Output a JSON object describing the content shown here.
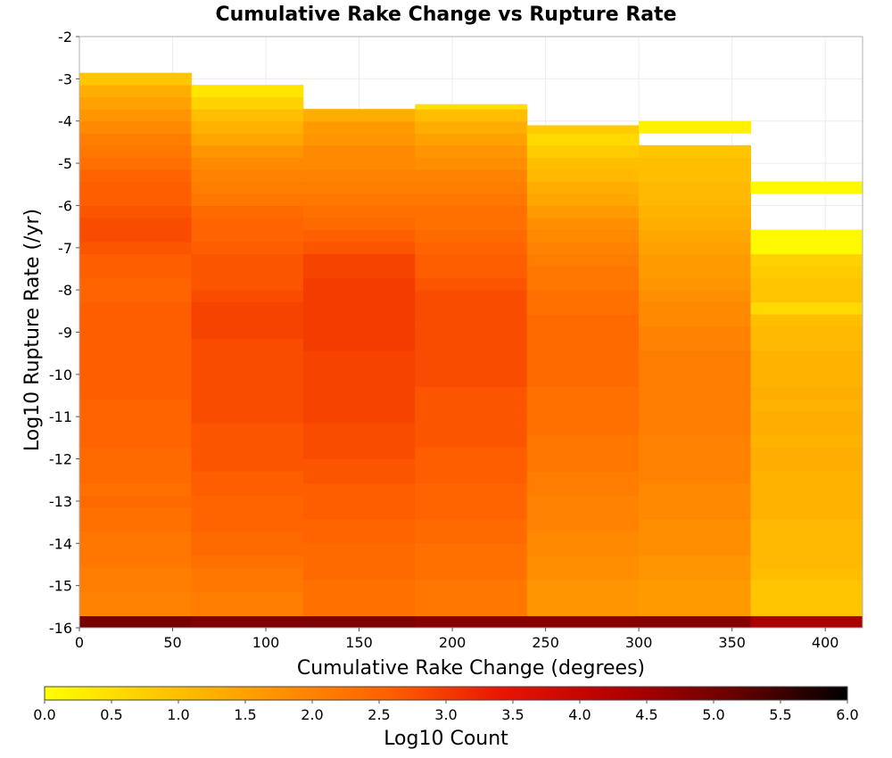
{
  "chart_data": {
    "type": "heatmap",
    "title": "Cumulative Rake Change vs Rupture Rate",
    "xlabel": "Cumulative Rake Change (degrees)",
    "ylabel": "Log10 Rupture Rate (/yr)",
    "xlim": [
      0,
      420
    ],
    "ylim": [
      -16,
      -2
    ],
    "xticks": [
      "0",
      "50",
      "100",
      "150",
      "200",
      "250",
      "300",
      "350",
      "400"
    ],
    "yticks": [
      "-2",
      "-3",
      "-4",
      "-5",
      "-6",
      "-7",
      "-8",
      "-9",
      "-10",
      "-11",
      "-12",
      "-13",
      "-14",
      "-15",
      "-16"
    ],
    "x_bin_width": 60,
    "y_bin_height": 0.2857,
    "grid": true,
    "colorbar": {
      "label": "Log10 Count",
      "range": [
        0.0,
        6.0
      ],
      "ticks": [
        "0.0",
        "0.5",
        "1.0",
        "1.5",
        "2.0",
        "2.5",
        "3.0",
        "3.5",
        "4.0",
        "4.5",
        "5.0",
        "5.5",
        "6.0"
      ],
      "colormap": [
        "#ffff00",
        "#ffc800",
        "#ff9400",
        "#ff6000",
        "#e81500",
        "#b30000",
        "#6a0000",
        "#000000"
      ]
    },
    "columns": [
      {
        "x_start": 0,
        "x_end": 60,
        "y_bottom": -16,
        "y_top": -2.7,
        "values": [
          5.0,
          2.0,
          2.0,
          2.1,
          2.1,
          2.2,
          2.2,
          2.2,
          2.3,
          2.3,
          2.4,
          2.3,
          2.4,
          2.4,
          2.4,
          2.5,
          2.5,
          2.5,
          2.5,
          2.6,
          2.6,
          2.6,
          2.6,
          2.6,
          2.6,
          2.6,
          2.6,
          2.5,
          2.5,
          2.6,
          2.6,
          2.7,
          2.8,
          2.8,
          2.7,
          2.6,
          2.6,
          2.5,
          2.3,
          2.2,
          2.1,
          1.9,
          1.7,
          1.5,
          1.3,
          0.9
        ]
      },
      {
        "x_start": 60,
        "x_end": 120,
        "y_bottom": -16,
        "y_top": -3.0,
        "values": [
          4.9,
          2.1,
          2.1,
          2.2,
          2.2,
          2.3,
          2.4,
          2.4,
          2.5,
          2.5,
          2.5,
          2.6,
          2.6,
          2.7,
          2.7,
          2.7,
          2.7,
          2.8,
          2.8,
          2.8,
          2.8,
          2.8,
          2.8,
          2.8,
          2.9,
          2.9,
          2.9,
          2.8,
          2.7,
          2.7,
          2.7,
          2.6,
          2.5,
          2.5,
          2.4,
          2.2,
          2.1,
          2.0,
          1.9,
          1.7,
          1.4,
          1.2,
          1.0,
          0.7,
          0.4
        ]
      },
      {
        "x_start": 120,
        "x_end": 180,
        "y_bottom": -16,
        "y_top": -3.6,
        "values": [
          4.9,
          2.3,
          2.3,
          2.3,
          2.4,
          2.4,
          2.4,
          2.5,
          2.5,
          2.6,
          2.6,
          2.6,
          2.7,
          2.7,
          2.8,
          2.8,
          2.8,
          2.9,
          2.9,
          2.9,
          2.9,
          2.9,
          2.9,
          3.0,
          3.0,
          3.0,
          3.0,
          3.0,
          3.0,
          2.9,
          2.9,
          2.7,
          2.6,
          2.4,
          2.3,
          2.2,
          2.1,
          2.0,
          1.9,
          1.9,
          1.7,
          1.6,
          1.3
        ]
      },
      {
        "x_start": 180,
        "x_end": 240,
        "y_bottom": -16,
        "y_top": -3.6,
        "values": [
          4.8,
          2.2,
          2.2,
          2.2,
          2.3,
          2.3,
          2.3,
          2.4,
          2.4,
          2.5,
          2.5,
          2.5,
          2.6,
          2.6,
          2.6,
          2.7,
          2.7,
          2.7,
          2.7,
          2.7,
          2.8,
          2.8,
          2.8,
          2.8,
          2.8,
          2.8,
          2.8,
          2.8,
          2.7,
          2.6,
          2.6,
          2.5,
          2.4,
          2.3,
          2.3,
          2.2,
          2.1,
          2.0,
          1.8,
          1.7,
          1.5,
          1.3,
          1.0,
          0.5
        ]
      },
      {
        "x_start": 240,
        "x_end": 300,
        "y_bottom": -16,
        "y_top": -4.1,
        "values": [
          4.8,
          1.7,
          1.7,
          1.7,
          1.8,
          1.8,
          1.9,
          1.9,
          2.0,
          2.0,
          2.0,
          2.1,
          2.1,
          2.2,
          2.2,
          2.2,
          2.3,
          2.3,
          2.3,
          2.3,
          2.4,
          2.4,
          2.4,
          2.4,
          2.4,
          2.4,
          2.3,
          2.3,
          2.2,
          2.2,
          2.1,
          2.0,
          1.9,
          1.8,
          1.6,
          1.4,
          1.3,
          1.1,
          1.0,
          0.8,
          0.6,
          0.8
        ]
      },
      {
        "x_start": 300,
        "x_end": 360,
        "y_bottom": -16,
        "y_top": -3.8,
        "values": [
          4.8,
          1.6,
          1.6,
          1.6,
          1.7,
          1.7,
          1.8,
          1.8,
          1.8,
          1.9,
          1.9,
          1.9,
          2.0,
          2.0,
          2.0,
          2.0,
          2.1,
          2.1,
          2.1,
          2.1,
          2.1,
          2.1,
          2.1,
          2.0,
          2.0,
          1.9,
          1.9,
          1.8,
          1.7,
          1.6,
          1.6,
          1.5,
          1.4,
          1.3,
          1.2,
          1.1,
          1.1,
          1.0,
          1.0,
          0.9,
          null,
          0.2
        ]
      },
      {
        "x_start": 360,
        "x_end": 420,
        "y_bottom": -16,
        "y_top": -5.0,
        "values": [
          4.4,
          0.9,
          0.9,
          0.9,
          1.0,
          1.1,
          1.1,
          1.1,
          1.1,
          1.2,
          1.2,
          1.2,
          1.2,
          1.3,
          1.3,
          1.2,
          1.3,
          1.3,
          1.2,
          1.3,
          1.2,
          1.2,
          1.2,
          1.1,
          1.1,
          1.0,
          0.6,
          0.9,
          0.9,
          0.8,
          0.7,
          0.1,
          0.1,
          null,
          null,
          null,
          0.1
        ]
      }
    ]
  }
}
